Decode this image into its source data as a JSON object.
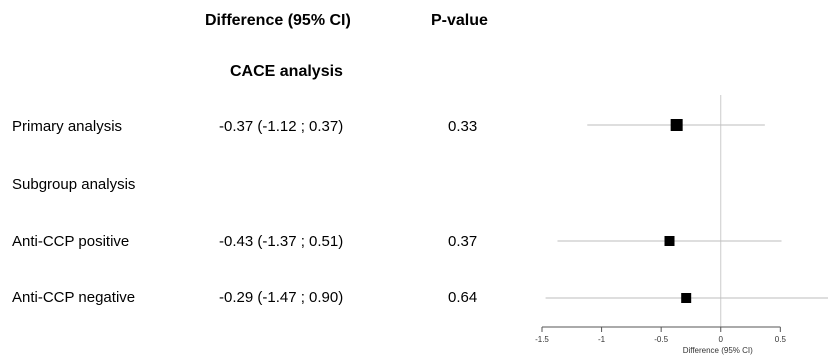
{
  "headers": {
    "difference": "Difference (95% CI)",
    "pvalue": "P-value",
    "section": "CACE analysis"
  },
  "rows": [
    {
      "label": "Primary analysis",
      "ci_text": "-0.37 (-1.12 ; 0.37)",
      "pvalue": "0.33"
    },
    {
      "label": "Subgroup analysis",
      "ci_text": "",
      "pvalue": ""
    },
    {
      "label": "Anti-CCP positive",
      "ci_text": "-0.43 (-1.37 ; 0.51)",
      "pvalue": "0.37"
    },
    {
      "label": "Anti-CCP negative",
      "ci_text": "-0.29 (-1.47 ; 0.90)",
      "pvalue": "0.64"
    }
  ],
  "chart_data": {
    "type": "forest",
    "xlabel": "Difference (95% CI)",
    "xlim": [
      -1.5,
      0.9
    ],
    "xticks": [
      -1.5,
      -1,
      -0.5,
      0,
      0.5
    ],
    "xtick_labels": [
      "-1.5",
      "-1",
      "-0.5",
      "0",
      "0.5"
    ],
    "reference_line": 0,
    "points": [
      {
        "label": "Primary analysis",
        "estimate": -0.37,
        "lower": -1.12,
        "upper": 0.37
      },
      {
        "label": "Anti-CCP positive",
        "estimate": -0.43,
        "lower": -1.37,
        "upper": 0.51
      },
      {
        "label": "Anti-CCP negative",
        "estimate": -0.29,
        "lower": -1.47,
        "upper": 0.9
      }
    ],
    "colors": {
      "marker": "#000000",
      "ci_line": "#bdbdbd",
      "axis": "#555555"
    }
  }
}
